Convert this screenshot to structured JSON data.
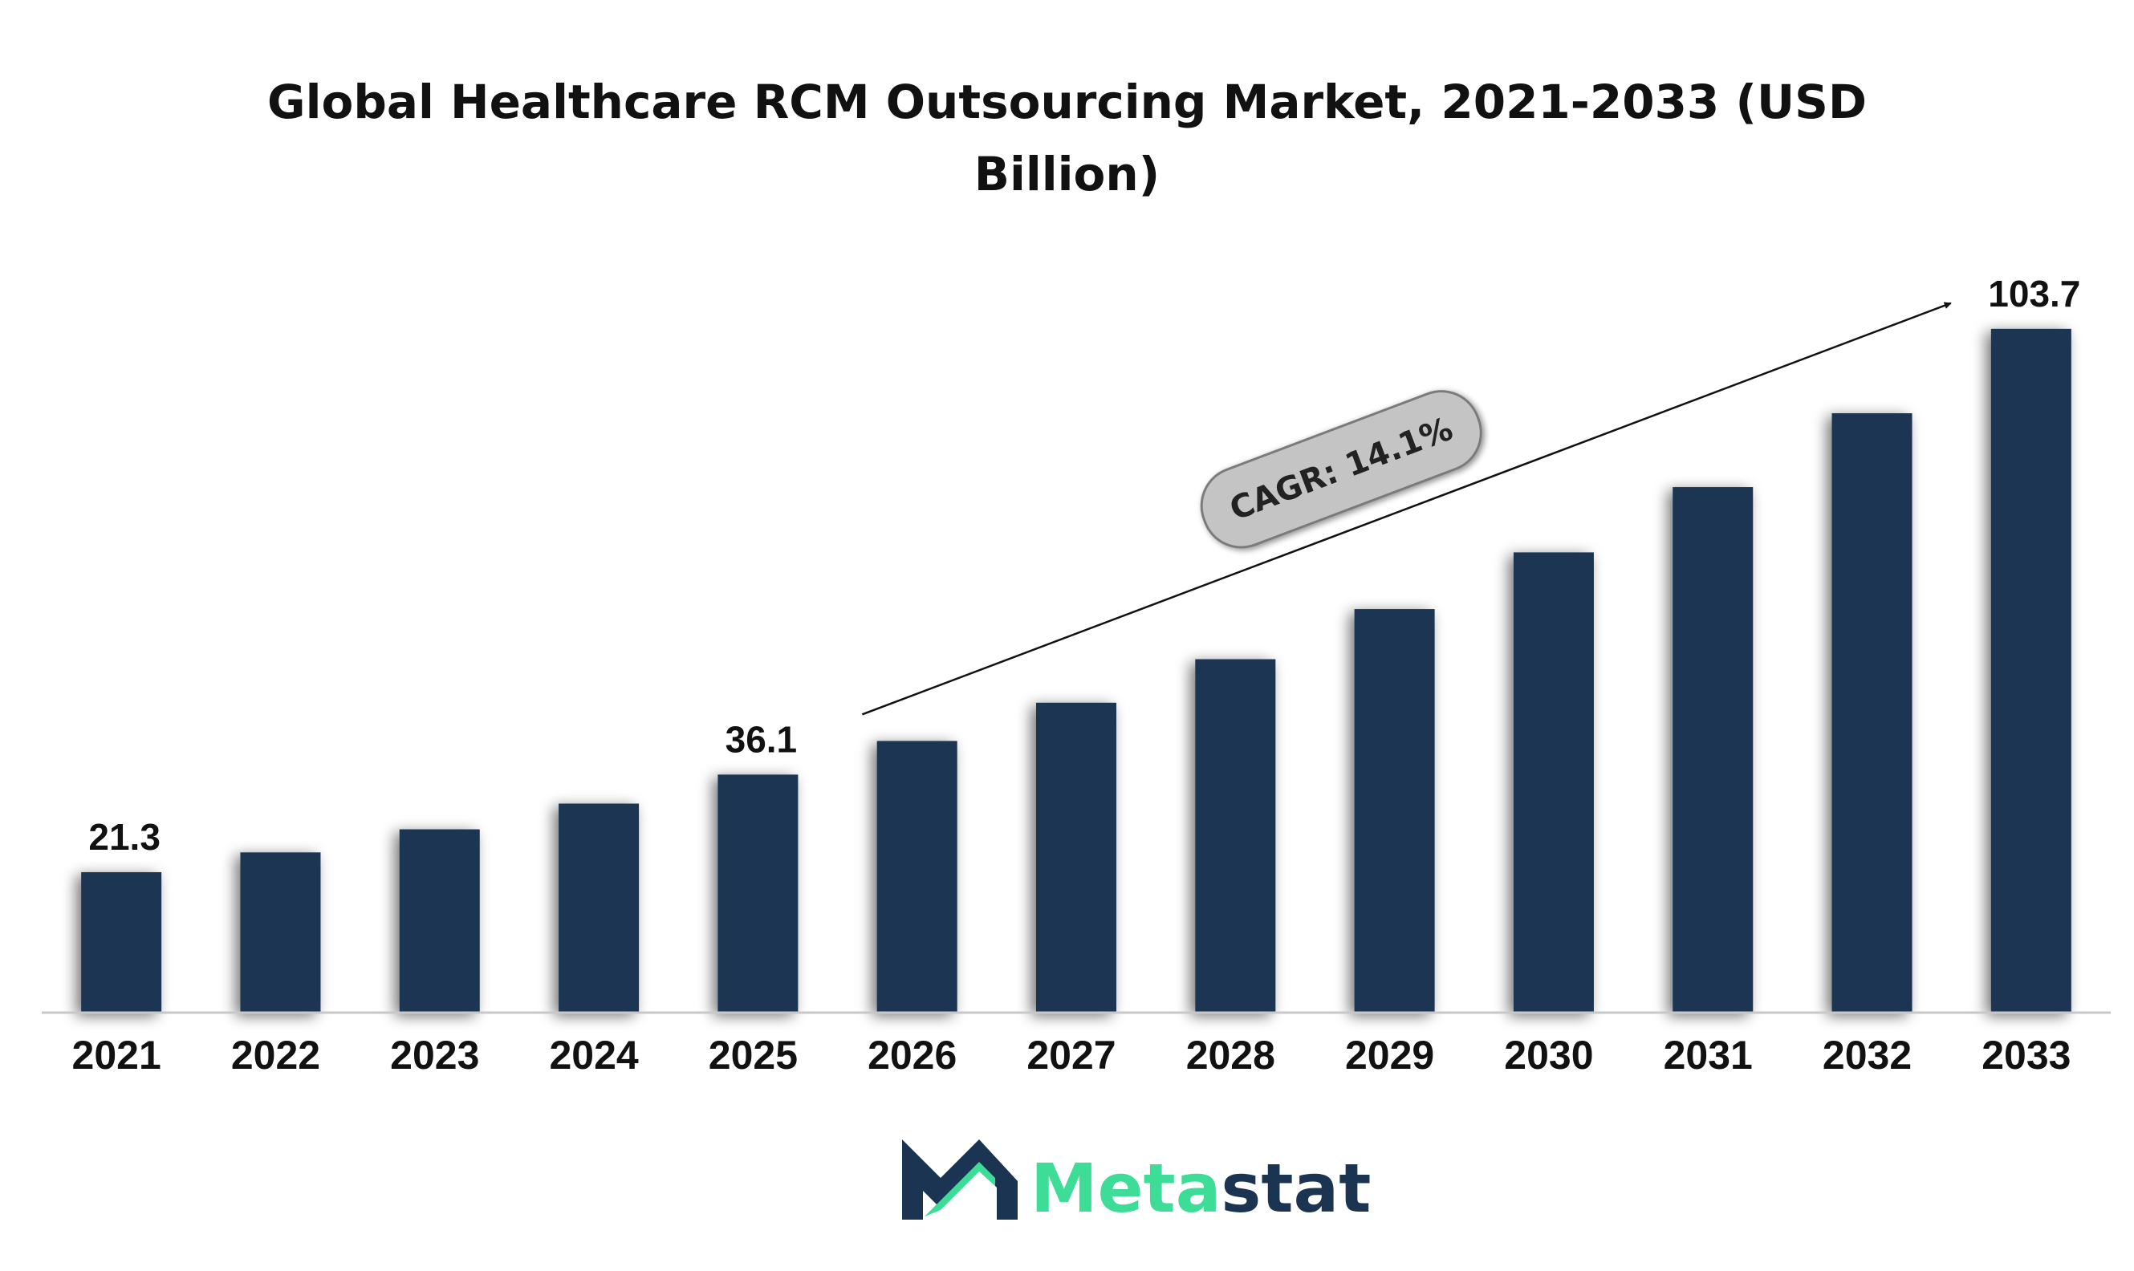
{
  "chart_data": {
    "type": "bar",
    "title": "Global Healthcare RCM Outsourcing Market, 2021-2033 (USD",
    "title_line2": "Billion)",
    "categories": [
      "2021",
      "2022",
      "2023",
      "2024",
      "2025",
      "2026",
      "2027",
      "2028",
      "2029",
      "2030",
      "2031",
      "2032",
      "2033"
    ],
    "values": [
      21.3,
      24.3,
      27.8,
      31.7,
      36.1,
      41.2,
      47.0,
      53.6,
      61.2,
      69.8,
      79.7,
      90.9,
      103.7
    ],
    "data_labels": [
      {
        "category": "2021",
        "text": "21.3"
      },
      {
        "category": "2025",
        "text": "36.1"
      },
      {
        "category": "2033",
        "text": "103.7"
      }
    ],
    "annotation": "CAGR: 14.1%",
    "ylim": [
      0,
      108
    ],
    "grid": false,
    "bar_color": "#1b3452"
  },
  "brand": {
    "name_part1": "Meta",
    "name_part2": "stat",
    "color_part1": "#3ddc97",
    "color_part2": "#1b3452"
  }
}
